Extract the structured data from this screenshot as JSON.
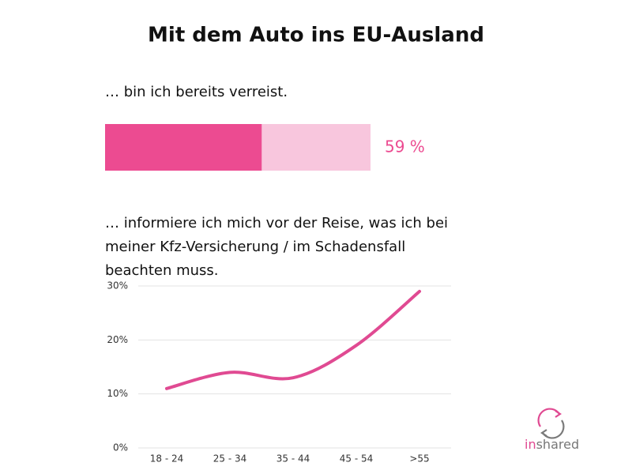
{
  "title": "Mit dem Auto ins EU-Ausland",
  "chart_data": [
    {
      "type": "progress",
      "title": "… bin ich bereits verreist.",
      "value": 59,
      "value_label": "59 %",
      "xlim": [
        0,
        100
      ],
      "color": "#ec4b91",
      "track_color": "#f8c6dd"
    },
    {
      "type": "line",
      "title": "… informiere ich mich vor der Reise, was ich bei meiner Kfz-Versicherung / im Schadensfall beachten muss.",
      "categories": [
        "18 - 24",
        "25 - 34",
        "35 - 44",
        "45 - 54",
        ">55"
      ],
      "values": [
        11,
        14,
        13,
        19,
        29
      ],
      "color": "#e04a92",
      "ylim": [
        0,
        30
      ],
      "yticks": [
        {
          "value": 0,
          "label": "0%"
        },
        {
          "value": 10,
          "label": "10%"
        },
        {
          "value": 20,
          "label": "20%"
        },
        {
          "value": 30,
          "label": "30%"
        }
      ],
      "grid": true
    }
  ],
  "logo": {
    "prefix": "in",
    "suffix": "shared"
  }
}
